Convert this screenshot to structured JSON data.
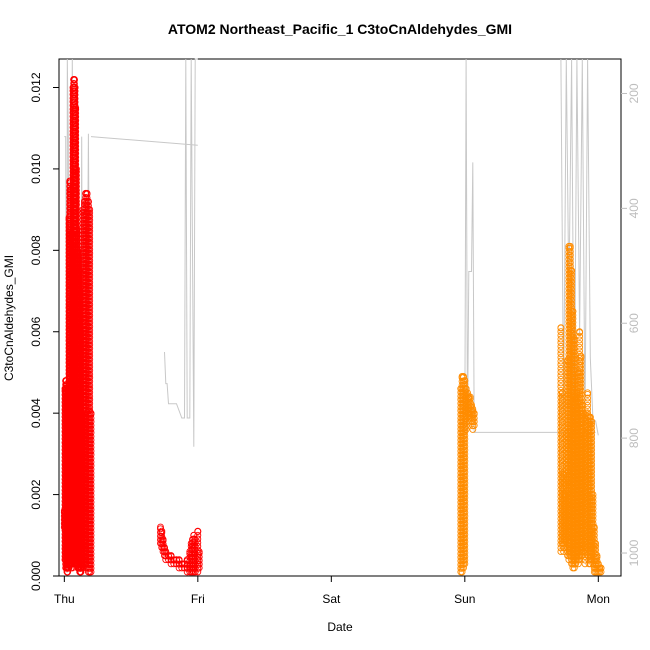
{
  "chart_data": {
    "type": "scatter",
    "title": "ATOM2 Northeast_Pacific_1 C3toCnAldehydes_GMI",
    "xlabel": "Date",
    "ylabel": "C3toCnAldehydes_GMI",
    "x_ticks": [
      "Thu",
      "Fri",
      "Sat",
      "Sun",
      "Mon"
    ],
    "y_ticks": [
      "0.000",
      "0.002",
      "0.004",
      "0.006",
      "0.008",
      "0.010",
      "0.012"
    ],
    "ylim": [
      0,
      0.0127
    ],
    "xlim": [
      -0.04,
      4.17
    ],
    "right_axis": {
      "ticks": [
        "200",
        "400",
        "600",
        "800",
        "1000"
      ],
      "range": [
        1040,
        140
      ],
      "color": "#bdbdbd"
    },
    "grid": false,
    "colors": {
      "red": "#ff0000",
      "orange": "#ff8c00",
      "gray": "#c8c8c8"
    },
    "series": [
      {
        "color": "#ff0000",
        "x": [
          0.0,
          0.005,
          0.01,
          0.015,
          0.02,
          0.025,
          0.03,
          0.035,
          0.04,
          0.045,
          0.05,
          0.06,
          0.065,
          0.07,
          0.075,
          0.08,
          0.085,
          0.09,
          0.095,
          0.1,
          0.105,
          0.11,
          0.115,
          0.12,
          0.125,
          0.13,
          0.14,
          0.15,
          0.16,
          0.17,
          0.18,
          0.19,
          0.2
        ],
        "ymin": [
          0.0012,
          0.0004,
          0.0002,
          0.0002,
          0.0001,
          0.0001,
          0.0002,
          0.0002,
          0.0003,
          0.0003,
          0.0002,
          0.0002,
          0.0004,
          0.0004,
          0.0003,
          0.0003,
          0.0003,
          0.0003,
          0.0003,
          0.0002,
          0.0002,
          0.0002,
          0.0001,
          0.0001,
          0.0001,
          0.0002,
          0.0002,
          0.0003,
          0.0003,
          0.0002,
          0.0001,
          0.0001,
          0.0001
        ],
        "ymax": [
          0.0016,
          0.0046,
          0.0048,
          0.0048,
          0.0047,
          0.0044,
          0.0046,
          0.0088,
          0.0097,
          0.0097,
          0.0095,
          0.0084,
          0.012,
          0.0122,
          0.0122,
          0.012,
          0.0115,
          0.01,
          0.0085,
          0.008,
          0.0078,
          0.0075,
          0.007,
          0.006,
          0.0045,
          0.004,
          0.009,
          0.0092,
          0.0094,
          0.0094,
          0.0092,
          0.009,
          0.004
        ]
      },
      {
        "color": "#ff0000",
        "x": [
          0.72,
          0.73,
          0.74,
          0.75,
          0.76,
          0.78,
          0.8,
          0.82,
          0.84,
          0.86,
          0.88,
          0.9,
          0.92,
          0.94,
          0.95,
          0.96,
          0.97,
          0.98,
          1.0,
          1.01
        ],
        "ymin": [
          0.0008,
          0.0007,
          0.0006,
          0.0005,
          0.0004,
          0.0004,
          0.0003,
          0.0003,
          0.0003,
          0.0002,
          0.0002,
          0.0002,
          0.0001,
          0.0001,
          0.0001,
          0.0001,
          0.0001,
          0.0001,
          0.0001,
          0.0002
        ],
        "ymax": [
          0.0012,
          0.0011,
          0.0009,
          0.0007,
          0.0006,
          0.0005,
          0.0005,
          0.0004,
          0.0004,
          0.0004,
          0.0003,
          0.0003,
          0.0004,
          0.0006,
          0.0008,
          0.0009,
          0.001,
          0.0009,
          0.0011,
          0.0006
        ]
      },
      {
        "color": "#ff8c00",
        "x": [
          2.97,
          2.98,
          2.99,
          3.0,
          3.01,
          3.02,
          3.03,
          3.04,
          3.05,
          3.06,
          3.07
        ],
        "ymin": [
          0.0001,
          0.0001,
          0.0002,
          0.0003,
          0.0036,
          0.0038,
          0.004,
          0.0039,
          0.0038,
          0.0036,
          0.0037
        ],
        "ymax": [
          0.0046,
          0.0049,
          0.0049,
          0.0048,
          0.0046,
          0.0045,
          0.0044,
          0.0044,
          0.0042,
          0.0041,
          0.004
        ]
      },
      {
        "color": "#ff8c00",
        "x": [
          3.72,
          3.73,
          3.74,
          3.75,
          3.76,
          3.77,
          3.78,
          3.79,
          3.8,
          3.81,
          3.82,
          3.83,
          3.84,
          3.85,
          3.86,
          3.87,
          3.88,
          3.89,
          3.9,
          3.91,
          3.92,
          3.93,
          3.94,
          3.95,
          3.96,
          3.97,
          3.98,
          3.99,
          4.0,
          4.01,
          4.02
        ],
        "ymin": [
          0.0006,
          0.0008,
          0.0006,
          0.0007,
          0.0009,
          0.0005,
          0.0004,
          0.0005,
          0.0003,
          0.0002,
          0.0002,
          0.0003,
          0.0004,
          0.0003,
          0.0004,
          0.0005,
          0.0005,
          0.0006,
          0.0003,
          0.0007,
          0.0005,
          0.0003,
          0.0003,
          0.0004,
          0.0003,
          0.0001,
          0.0001,
          0.0001,
          0.0001,
          0.0001,
          0.0001
        ],
        "ymax": [
          0.0061,
          0.0045,
          0.0025,
          0.002,
          0.0035,
          0.0053,
          0.0081,
          0.0081,
          0.0075,
          0.0065,
          0.0058,
          0.0044,
          0.0045,
          0.005,
          0.006,
          0.0054,
          0.0042,
          0.004,
          0.0035,
          0.004,
          0.0045,
          0.0039,
          0.0039,
          0.0038,
          0.002,
          0.0012,
          0.0008,
          0.0005,
          0.0003,
          0.0002,
          0.0002
        ]
      }
    ],
    "gray_lines": [
      {
        "x": [
          0.0,
          0.01,
          0.02,
          0.022,
          0.03,
          0.04,
          0.06,
          0.08,
          0.1,
          0.12,
          0.13,
          0.14,
          0.16,
          0.18,
          0.2
        ],
        "y": [
          275,
          275,
          1035,
          140,
          275,
          1030,
          140,
          1020,
          210,
          1030,
          275,
          1000,
          1030,
          270,
          1020
        ]
      },
      {
        "x": [
          0.2,
          1.0
        ],
        "y": [
          275,
          290
        ]
      },
      {
        "x": [
          0.75,
          0.76,
          0.77,
          0.78,
          0.8,
          0.84,
          0.88,
          0.9,
          0.91,
          0.92,
          0.94,
          0.95,
          0.97,
          0.98,
          1.0
        ],
        "y": [
          650,
          705,
          705,
          740,
          740,
          740,
          765,
          765,
          140,
          765,
          765,
          140,
          815,
          140,
          140
        ]
      },
      {
        "x": [
          3.0,
          3.01,
          3.02,
          3.03,
          3.05,
          3.06,
          3.07,
          3.08
        ],
        "y": [
          790,
          140,
          790,
          510,
          510,
          320,
          790,
          790
        ]
      },
      {
        "x": [
          3.08,
          3.98
        ],
        "y": [
          790,
          790
        ]
      },
      {
        "x": [
          3.72,
          3.74,
          3.76,
          3.78,
          3.8,
          3.82,
          3.84,
          3.86,
          3.88,
          3.9,
          3.92,
          3.94,
          3.96,
          3.98,
          4.0
        ],
        "y": [
          140,
          755,
          140,
          560,
          140,
          800,
          140,
          620,
          140,
          780,
          140,
          660,
          770,
          770,
          795
        ]
      }
    ]
  }
}
